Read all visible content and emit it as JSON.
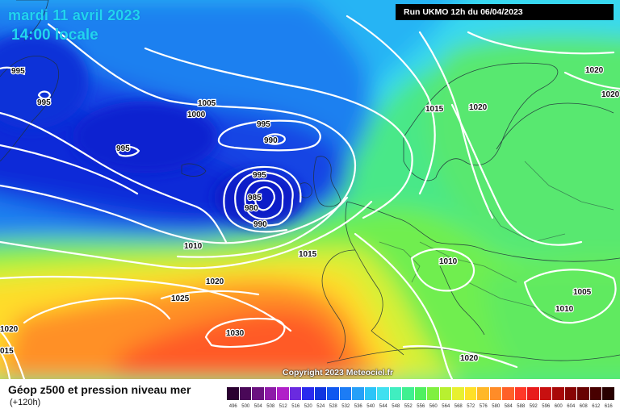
{
  "header": {
    "date_line": "mardi 11 avril 2023",
    "time_line": "14:00 locale",
    "run_info": "Run UKMO 12h du 06/04/2023"
  },
  "map": {
    "copyright": "Copyright 2023 Meteociel.fr",
    "isobar_labels": [
      {
        "value": "995"
      },
      {
        "value": "995"
      },
      {
        "value": "1005"
      },
      {
        "value": "1000"
      },
      {
        "value": "995"
      },
      {
        "value": "990"
      },
      {
        "value": "995"
      },
      {
        "value": "995"
      },
      {
        "value": "985"
      },
      {
        "value": "980"
      },
      {
        "value": "990"
      },
      {
        "value": "1010"
      },
      {
        "value": "1015"
      },
      {
        "value": "1020"
      },
      {
        "value": "1025"
      },
      {
        "value": "1030"
      },
      {
        "value": "1020"
      },
      {
        "value": "015"
      },
      {
        "value": "1015"
      },
      {
        "value": "1020"
      },
      {
        "value": "1020"
      },
      {
        "value": "1020"
      },
      {
        "value": "1010"
      },
      {
        "value": "1005"
      },
      {
        "value": "1010"
      },
      {
        "value": "1020"
      }
    ]
  },
  "legend": {
    "title": "Géop z500 et pression niveau mer",
    "subtitle": "(+120h)",
    "scale": [
      {
        "label": "496",
        "color": "#2a0030"
      },
      {
        "label": "500",
        "color": "#4a0858"
      },
      {
        "label": "504",
        "color": "#6b1280"
      },
      {
        "label": "508",
        "color": "#8e1aa8"
      },
      {
        "label": "512",
        "color": "#b020c8"
      },
      {
        "label": "516",
        "color": "#6a2ae0"
      },
      {
        "label": "520",
        "color": "#2a2aee"
      },
      {
        "label": "524",
        "color": "#1035e0"
      },
      {
        "label": "528",
        "color": "#1058f0"
      },
      {
        "label": "532",
        "color": "#1c7cf5"
      },
      {
        "label": "536",
        "color": "#26a0f8"
      },
      {
        "label": "540",
        "color": "#2cc4f8"
      },
      {
        "label": "544",
        "color": "#40e0f0"
      },
      {
        "label": "548",
        "color": "#40eec0"
      },
      {
        "label": "552",
        "color": "#40f090"
      },
      {
        "label": "556",
        "color": "#50f060"
      },
      {
        "label": "560",
        "color": "#80f040"
      },
      {
        "label": "564",
        "color": "#b8f030"
      },
      {
        "label": "568",
        "color": "#e8f030"
      },
      {
        "label": "572",
        "color": "#ffe028"
      },
      {
        "label": "576",
        "color": "#ffb828"
      },
      {
        "label": "580",
        "color": "#ff8c28"
      },
      {
        "label": "584",
        "color": "#ff6028"
      },
      {
        "label": "588",
        "color": "#ff3828"
      },
      {
        "label": "592",
        "color": "#e81c1c"
      },
      {
        "label": "596",
        "color": "#c81010"
      },
      {
        "label": "600",
        "color": "#a80808"
      },
      {
        "label": "604",
        "color": "#880404"
      },
      {
        "label": "608",
        "color": "#680202"
      },
      {
        "label": "612",
        "color": "#480000"
      },
      {
        "label": "616",
        "color": "#280000"
      }
    ]
  }
}
